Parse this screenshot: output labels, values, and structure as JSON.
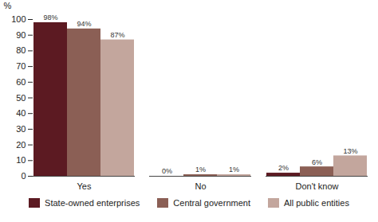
{
  "chart_data": {
    "type": "bar",
    "y_label": "%",
    "categories": [
      "Yes",
      "No",
      "Don't know"
    ],
    "series": [
      {
        "name": "State-owned enterprises",
        "color": "#5c1a22",
        "values": [
          98,
          0,
          2
        ],
        "value_labels": [
          "98%",
          "0%",
          "2%"
        ]
      },
      {
        "name": "Central government",
        "color": "#8b5f55",
        "values": [
          94,
          1,
          6
        ],
        "value_labels": [
          "94%",
          "1%",
          "6%"
        ]
      },
      {
        "name": "All public entities",
        "color": "#c3a69d",
        "values": [
          87,
          1,
          13
        ],
        "value_labels": [
          "87%",
          "1%",
          "13%"
        ]
      }
    ],
    "ylim": [
      0,
      100
    ],
    "yticks": [
      0,
      10,
      20,
      30,
      40,
      50,
      60,
      70,
      80,
      90,
      100
    ],
    "grid": false,
    "data_labels": true,
    "legend": "bottom"
  }
}
